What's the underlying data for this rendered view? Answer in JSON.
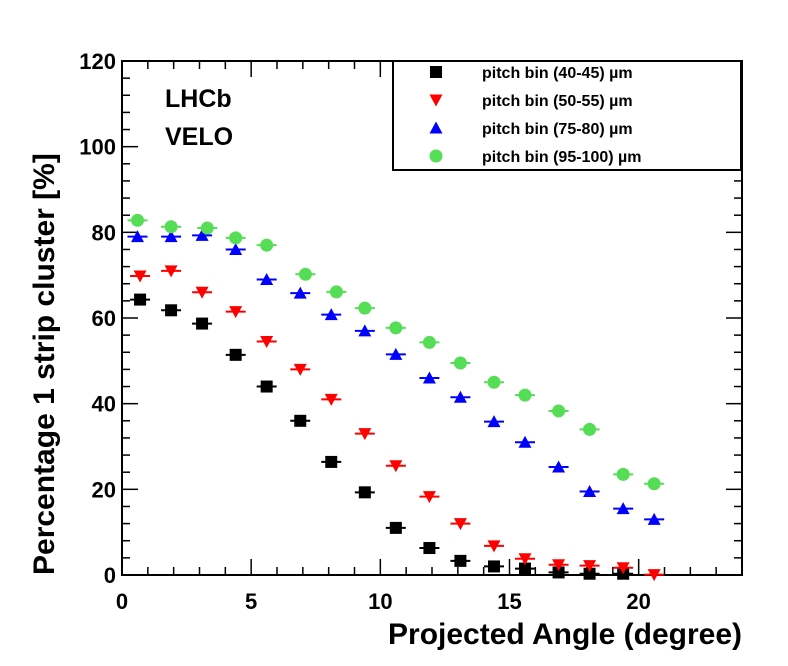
{
  "chart_data": {
    "type": "scatter",
    "title": "",
    "xlabel": "Projected Angle (degree)",
    "ylabel": "Percentage 1 strip cluster [%]",
    "xlim": [
      0,
      24
    ],
    "ylim": [
      0,
      120
    ],
    "grid": false,
    "legend_position": "top-right",
    "x_ticks": [
      "0",
      "5",
      "10",
      "15",
      "20"
    ],
    "y_ticks": [
      "0",
      "20",
      "40",
      "60",
      "80",
      "100",
      "120"
    ],
    "annotations": [
      "LHCb",
      "VELO"
    ],
    "series": [
      {
        "name": "pitch bin (40-45) µm",
        "color": "#000000",
        "marker": "square",
        "x": [
          0.7,
          1.9,
          3.1,
          4.4,
          5.6,
          6.9,
          8.1,
          9.4,
          10.6,
          11.9,
          13.1,
          14.4,
          15.6,
          16.9,
          18.1,
          19.4
        ],
        "y": [
          64.3,
          61.8,
          58.7,
          51.4,
          44.0,
          36.0,
          26.4,
          19.3,
          11.0,
          6.3,
          3.3,
          2.0,
          1.5,
          0.6,
          0.3,
          0.3
        ]
      },
      {
        "name": "pitch bin (50-55) µm",
        "color": "#ff0000",
        "marker": "triangle-down",
        "x": [
          0.7,
          1.9,
          3.1,
          4.4,
          5.6,
          6.9,
          8.1,
          9.4,
          10.6,
          11.9,
          13.1,
          14.4,
          15.6,
          16.9,
          18.1,
          19.4,
          20.6
        ],
        "y": [
          69.8,
          71.0,
          66.0,
          61.5,
          54.5,
          48.0,
          41.0,
          33.0,
          25.5,
          18.3,
          12.0,
          6.8,
          3.8,
          2.4,
          2.2,
          1.7,
          0.1
        ]
      },
      {
        "name": "pitch bin (75-80) µm",
        "color": "#0000ff",
        "marker": "triangle-up",
        "x": [
          0.6,
          1.9,
          3.1,
          4.4,
          5.6,
          6.9,
          8.1,
          9.4,
          10.6,
          11.9,
          13.1,
          14.4,
          15.6,
          16.9,
          18.1,
          19.4,
          20.6
        ],
        "y": [
          79.0,
          79.0,
          79.3,
          76.0,
          69.0,
          65.8,
          60.8,
          57.0,
          51.5,
          46.0,
          41.5,
          35.8,
          31.0,
          25.2,
          19.5,
          15.5,
          13.0
        ]
      },
      {
        "name": "pitch bin (95-100) µm",
        "color": "#55dd55",
        "marker": "circle",
        "x": [
          0.6,
          1.9,
          3.3,
          4.4,
          5.6,
          7.1,
          8.3,
          9.4,
          10.6,
          11.9,
          13.1,
          14.4,
          15.6,
          16.9,
          18.1,
          19.4,
          20.6
        ],
        "y": [
          82.8,
          81.3,
          81.0,
          78.7,
          77.0,
          70.2,
          66.1,
          62.3,
          57.7,
          54.3,
          49.5,
          45.0,
          42.0,
          38.3,
          34.0,
          23.5,
          21.3
        ]
      }
    ]
  }
}
